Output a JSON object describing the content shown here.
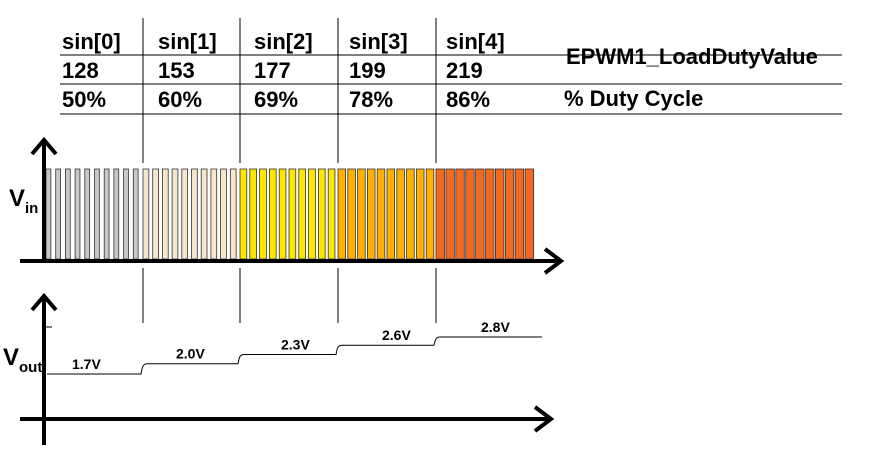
{
  "table": {
    "columns": [
      {
        "header": "sin[0]",
        "load_value": "128",
        "duty_cycle": "50%"
      },
      {
        "header": "sin[1]",
        "load_value": "153",
        "duty_cycle": "60%"
      },
      {
        "header": "sin[2]",
        "load_value": "177",
        "duty_cycle": "69%"
      },
      {
        "header": "sin[3]",
        "load_value": "199",
        "duty_cycle": "78%"
      },
      {
        "header": "sin[4]",
        "load_value": "219",
        "duty_cycle": "86%"
      }
    ],
    "row_label_load": "EPWM1_LoadDutyValue",
    "row_label_duty": "% Duty Cycle"
  },
  "vin_axis": {
    "label_main": "V",
    "label_sub": "in"
  },
  "vout_axis": {
    "label_main": "V",
    "label_sub": "out"
  },
  "segments": [
    {
      "duty_fraction": 0.5,
      "color": "#c8c8c8",
      "voltage_label": "1.7V"
    },
    {
      "duty_fraction": 0.6,
      "color": "#f5e6cc",
      "voltage_label": "2.0V"
    },
    {
      "duty_fraction": 0.69,
      "color": "#ffe600",
      "voltage_label": "2.3V"
    },
    {
      "duty_fraction": 0.78,
      "color": "#ffb000",
      "voltage_label": "2.6V"
    },
    {
      "duty_fraction": 0.86,
      "color": "#f26a22",
      "voltage_label": "2.8V"
    }
  ],
  "pulses_per_segment": 10
}
